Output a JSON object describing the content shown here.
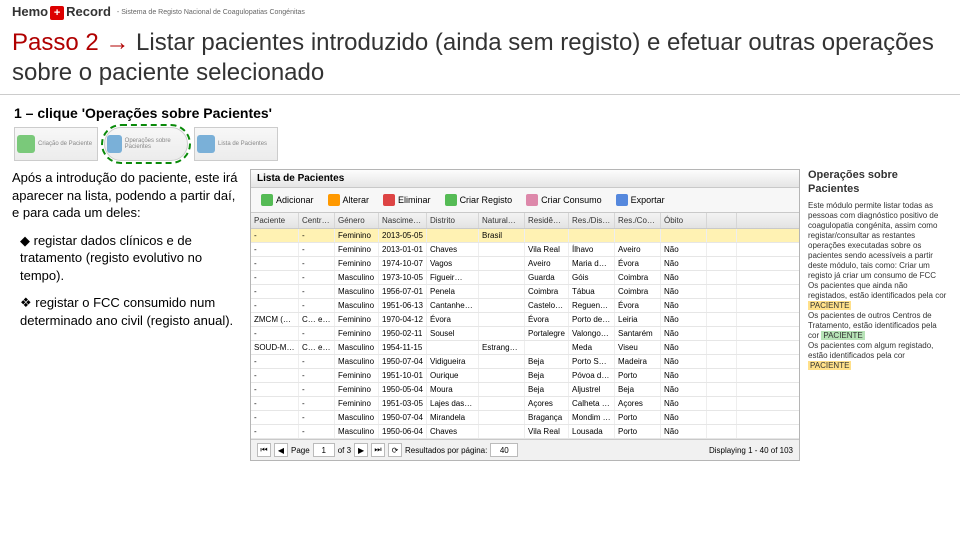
{
  "header": {
    "logo_left": "Hemo",
    "logo_right": "Record",
    "subtitle": "- Sistema de Registo Nacional de Coagulopatias Congénitas"
  },
  "main_heading": {
    "passo": "Passo 2 →",
    "rest": " Listar pacientes introduzido (ainda sem registo) e efetuar outras operações sobre o paciente selecionado"
  },
  "sub_heading": "1 – clique 'Operações sobre Pacientes'",
  "thumbs": {
    "t1": "Criação de Paciente",
    "t2": "Operações sobre Pacientes",
    "t3": "Lista de Pacientes"
  },
  "left": {
    "p1": "Após a introdução do paciente, este irá aparecer na lista, podendo a partir daí, e para cada um deles:",
    "p2": "◆ registar dados clínicos e de tratamento (registo evolutivo no tempo).",
    "p3": "❖ registar o FCC consumido num determinado ano civil (registo anual)."
  },
  "panel": {
    "title": "Lista de Pacientes",
    "toolbar": {
      "add": "Adicionar",
      "edit": "Alterar",
      "del": "Eliminar",
      "reg": "Criar Registo",
      "cons": "Criar Consumo",
      "exp": "Exportar"
    },
    "columns": [
      "Paciente",
      "Centro…",
      "Género",
      "Nascime…",
      "Distrito",
      "Natural…",
      "Residência",
      "Res./Dist…",
      "Res./Con…",
      "Óbito",
      ""
    ],
    "rows": [
      [
        "-",
        "-",
        "Feminino",
        "2013-05-05",
        "",
        "Brasil",
        "",
        "",
        "",
        "",
        ""
      ],
      [
        "-",
        "-",
        "Feminino",
        "2013-01-01",
        "Chaves",
        "",
        "Vila Real",
        "Ílhavo",
        "Aveiro",
        "Não",
        ""
      ],
      [
        "-",
        "-",
        "Feminino",
        "1974-10-07",
        "Vagos",
        "",
        "Aveiro",
        "Maria da…",
        "Évora",
        "Não",
        ""
      ],
      [
        "-",
        "-",
        "Masculino",
        "1973-10-05",
        "Figueir…",
        "",
        "Guarda",
        "Góis",
        "Coimbra",
        "Não",
        ""
      ],
      [
        "-",
        "-",
        "Masculino",
        "1956-07-01",
        "Penela",
        "",
        "Coimbra",
        "Tábua",
        "Coimbra",
        "Não",
        ""
      ],
      [
        "-",
        "-",
        "Masculino",
        "1951-06-13",
        "Cantanhe…",
        "",
        "Castelo …",
        "Reguengo…",
        "Évora",
        "Não",
        ""
      ],
      [
        "ZMCM (2…",
        "C… e Univ. Coimbra",
        "Feminino",
        "1970-04-12",
        "Évora",
        "",
        "Évora",
        "Porto de…",
        "Leiria",
        "Não",
        ""
      ],
      [
        "-",
        "-",
        "Feminino",
        "1950-02-11",
        "Sousel",
        "",
        "Portalegre",
        "Valongo…",
        "Santarém",
        "Não",
        ""
      ],
      [
        "SOUD-M…",
        "C… e Univ. Coimbra",
        "Masculino",
        "1954-11-15",
        "",
        "Estrange…",
        "",
        "Meda",
        "Viseu",
        "Não",
        ""
      ],
      [
        "-",
        "-",
        "Masculino",
        "1950-07-04",
        "Vidigueira",
        "",
        "Beja",
        "Porto S…",
        "Madeira",
        "Não",
        ""
      ],
      [
        "-",
        "-",
        "Feminino",
        "1951-10-01",
        "Ourique",
        "",
        "Beja",
        "Póvoa d…",
        "Porto",
        "Não",
        ""
      ],
      [
        "-",
        "-",
        "Feminino",
        "1950-05-04",
        "Moura",
        "",
        "Beja",
        "Aljustrel",
        "Beja",
        "Não",
        ""
      ],
      [
        "-",
        "-",
        "Feminino",
        "1951-03-05",
        "Lajes das…",
        "",
        "Açores",
        "Calheta d…",
        "Açores",
        "Não",
        ""
      ],
      [
        "-",
        "-",
        "Masculino",
        "1950-07-04",
        "Mirandela",
        "",
        "Bragança",
        "Mondim …",
        "Porto",
        "Não",
        ""
      ],
      [
        "-",
        "-",
        "Masculino",
        "1950-06-04",
        "Chaves",
        "",
        "Vila Real",
        "Lousada",
        "Porto",
        "Não",
        ""
      ]
    ],
    "footer": {
      "page_lbl": "Page",
      "page_val": "1",
      "of": "of 3",
      "perpage_lbl": "Resultados por página:",
      "perpage_val": "40",
      "display": "Displaying 1 - 40 of 103"
    }
  },
  "right": {
    "title": "Operações sobre Pacientes",
    "p1": "Este módulo permite listar todas as pessoas com diagnóstico positivo de coagulopatia congénita, assim como registar/consultar as restantes operações executadas sobre os pacientes sendo acessíveis a partir deste módulo, tais como: Criar um registo já criar um consumo de FCC",
    "p2a": "Os pacientes que ainda não registados, estão identificados pela cor ",
    "p2b": "PACIENTE",
    "p3a": "Os pacientes de outros Centros de Tratamento, estão identificados pela cor ",
    "p3b": "PACIENTE",
    "p4a": "Os pacientes com algum registado, estão identificados pela cor ",
    "p4b": "PACIENTE"
  }
}
